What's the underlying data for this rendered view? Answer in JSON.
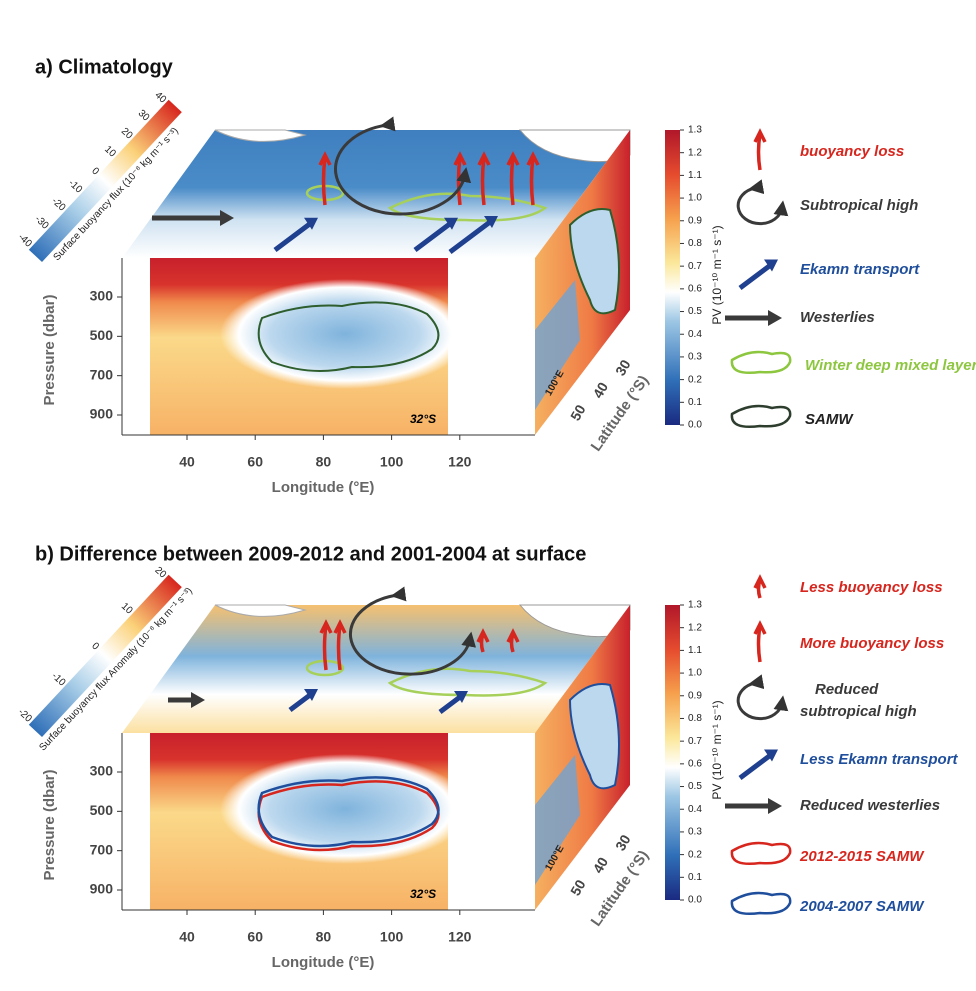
{
  "panels": [
    {
      "title": "a) Climatology",
      "pressure_label": "Pressure (dbar)",
      "pressure_ticks": [
        300,
        500,
        700,
        900
      ],
      "longitude_label": "Longitude (°E)",
      "longitude_ticks": [
        40,
        60,
        80,
        100,
        120
      ],
      "section_label": "32°S",
      "meridian_label": "100°E",
      "latitude_label": "Latitude (°S)",
      "latitude_ticks": [
        30,
        40,
        50
      ],
      "pv_label": "PV (10⁻¹⁰ m⁻¹ s⁻¹)",
      "pv_ticks": [
        "0.0",
        "0.1",
        "0.2",
        "0.3",
        "0.4",
        "0.5",
        "0.6",
        "0.7",
        "0.8",
        "0.9",
        "1.0",
        "1.1",
        "1.2",
        "1.3"
      ],
      "flux_label": "Surface buoyancy flux (10⁻⁸ kg m⁻¹ s⁻³)",
      "flux_ticks": [
        -40,
        -30,
        -20,
        -10,
        0,
        10,
        20,
        30,
        40
      ],
      "legend": [
        {
          "lines": [
            "buoyancy loss"
          ],
          "color": "#d7261e"
        },
        {
          "lines": [
            "Subtropical high"
          ],
          "color": "#3a3a3a"
        },
        {
          "lines": [
            "Ekamn transport"
          ],
          "color": "#1f4e9c"
        },
        {
          "lines": [
            "Westerlies"
          ],
          "color": "#3a3a3a"
        },
        {
          "lines": [
            "Winter deep mixed layer"
          ],
          "color": "#8dc63f"
        },
        {
          "lines": [
            "SAMW"
          ],
          "color": "#222222"
        }
      ]
    },
    {
      "title": "b) Difference between 2009-2012 and 2001-2004 at surface",
      "pressure_label": "Pressure (dbar)",
      "pressure_ticks": [
        300,
        500,
        700,
        900
      ],
      "longitude_label": "Longitude (°E)",
      "longitude_ticks": [
        40,
        60,
        80,
        100,
        120
      ],
      "section_label": "32°S",
      "meridian_label": "100°E",
      "latitude_label": "Latitude (°S)",
      "latitude_ticks": [
        30,
        40,
        50
      ],
      "pv_label": "PV (10⁻¹⁰ m⁻¹ s⁻¹)",
      "pv_ticks": [
        "0.0",
        "0.1",
        "0.2",
        "0.3",
        "0.4",
        "0.5",
        "0.6",
        "0.7",
        "0.8",
        "0.9",
        "1.0",
        "1.1",
        "1.2",
        "1.3"
      ],
      "flux_label": "Surface buoyancy flux Anomaly (10⁻⁸ kg m⁻¹ s⁻³)",
      "flux_ticks": [
        -20,
        -10,
        0,
        10,
        20
      ],
      "legend": [
        {
          "lines": [
            "Less buoyancy loss"
          ],
          "color": "#d7261e"
        },
        {
          "lines": [
            "More buoyancy loss"
          ],
          "color": "#d7261e"
        },
        {
          "lines": [
            "Reduced",
            "subtropical high"
          ],
          "color": "#3a3a3a"
        },
        {
          "lines": [
            "Less Ekamn transport"
          ],
          "color": "#1f4e9c"
        },
        {
          "lines": [
            "Reduced westerlies"
          ],
          "color": "#3a3a3a"
        },
        {
          "lines": [
            "2012-2015 SAMW"
          ],
          "color": "#d7261e"
        },
        {
          "lines": [
            "2004-2007 SAMW"
          ],
          "color": "#1f4e9c"
        }
      ]
    }
  ]
}
